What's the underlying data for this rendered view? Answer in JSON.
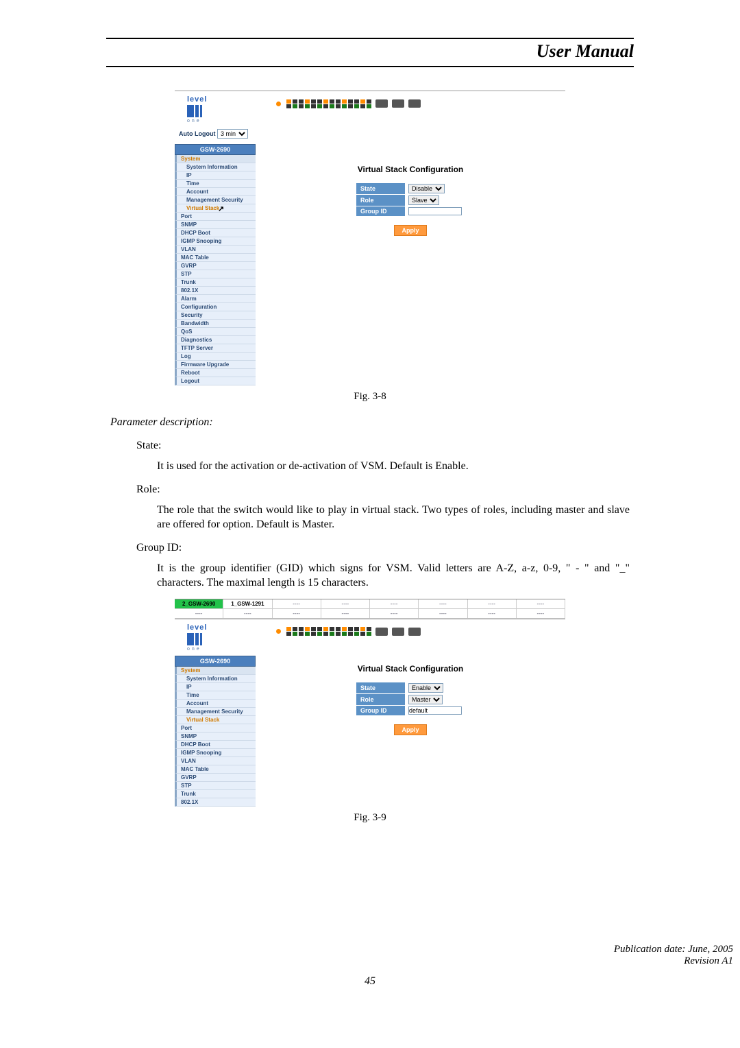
{
  "header": {
    "title": "User Manual"
  },
  "fig1": {
    "caption": "Fig. 3-8",
    "logo_text": "level",
    "logo_sub": "one",
    "autologout_label": "Auto Logout",
    "autologout_value": "3 min",
    "sidebar_head": "GSW-2690",
    "sidebar": [
      "System",
      "System Information",
      "IP",
      "Time",
      "Account",
      "Management Security",
      "Virtual Stack",
      "Port",
      "SNMP",
      "DHCP Boot",
      "IGMP Snooping",
      "VLAN",
      "MAC Table",
      "GVRP",
      "STP",
      "Trunk",
      "802.1X",
      "Alarm",
      "Configuration",
      "Security",
      "Bandwidth",
      "QoS",
      "Diagnostics",
      "TFTP Server",
      "Log",
      "Firmware Upgrade",
      "Reboot",
      "Logout"
    ],
    "active_item": "Virtual Stack",
    "sub_items_upto": 6,
    "content_title": "Virtual Stack Configuration",
    "rows": {
      "state_label": "State",
      "state_value": "Disable",
      "role_label": "Role",
      "role_value": "Slave",
      "group_label": "Group ID",
      "group_value": ""
    },
    "apply_label": "Apply"
  },
  "prose": {
    "param_desc": "Parameter description:",
    "state_term": "State:",
    "state_def": "It is used for the activation or de-activation of VSM. Default is Enable.",
    "role_term": "Role:",
    "role_def": "The role that the switch would like to play in virtual stack. Two types of roles, including master and slave are offered for option. Default is Master.",
    "group_term": "Group ID:",
    "group_def": "It is the group identifier (GID) which signs for VSM.  Valid letters are A-Z, a-z, 0-9, \" - \" and \"_\"  characters. The maximal length is 15 characters."
  },
  "fig2": {
    "caption": "Fig. 3-9",
    "tabs_row1": [
      "2_GSW-2690",
      "1_GSW-1291",
      "----",
      "----",
      "----",
      "----",
      "----",
      "----"
    ],
    "tabs_row2": [
      "----",
      "----",
      "----",
      "----",
      "----",
      "----",
      "----",
      "----"
    ],
    "logo_text": "level",
    "logo_sub": "one",
    "sidebar_head": "GSW-2690",
    "sidebar": [
      "System",
      "System Information",
      "IP",
      "Time",
      "Account",
      "Management Security",
      "Virtual Stack",
      "Port",
      "SNMP",
      "DHCP Boot",
      "IGMP Snooping",
      "VLAN",
      "MAC Table",
      "GVRP",
      "STP",
      "Trunk",
      "802.1X"
    ],
    "active_item": "Virtual Stack",
    "sub_items_upto": 6,
    "content_title": "Virtual Stack Configuration",
    "rows": {
      "state_label": "State",
      "state_value": "Enable",
      "role_label": "Role",
      "role_value": "Master",
      "group_label": "Group ID",
      "group_value": "default"
    },
    "apply_label": "Apply"
  },
  "footer": {
    "pub": "Publication date: June, 2005",
    "rev": "Revision A1",
    "page": "45"
  },
  "colors": {
    "sidebar_head_bg": "#4b7fbd",
    "sidebar_item_bg": "#e7effa",
    "label_bg": "#5b91c6",
    "apply_bg": "#ff9a3d",
    "tab_active_bg": "#22c24a",
    "led_on": "#ff8c00",
    "led_off": "#1a7a1a"
  }
}
